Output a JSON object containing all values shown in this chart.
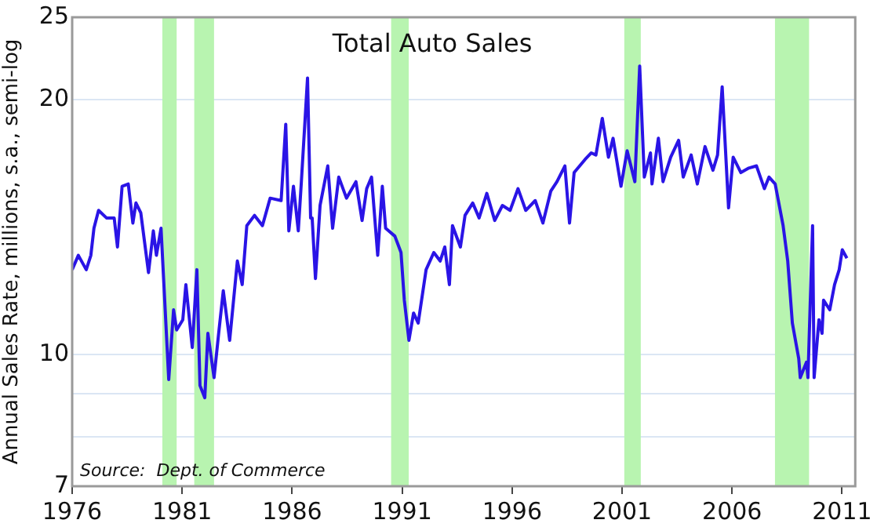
{
  "chart_data": {
    "type": "line",
    "title": "Total Auto Sales",
    "ylabel": "Annual Sales Rate, millions, s.a., semi-log",
    "annotations": [
      "Source:  Dept. of Commerce"
    ],
    "log": "y",
    "grid": "y",
    "legend": false,
    "marker": "none",
    "line_style": "solid",
    "xlim": [
      1976,
      2011.6
    ],
    "xticks": [
      1976,
      1981,
      1986,
      1991,
      1996,
      2001,
      2006,
      2011
    ],
    "ylim": [
      7,
      25
    ],
    "yticks": [
      7,
      {
        "value": 8,
        "label": null
      },
      {
        "value": 9,
        "label": null
      },
      10,
      20,
      25
    ],
    "bands": [
      {
        "axis": "x",
        "from": 1980.1,
        "to": 1980.75,
        "color": "#b8f4b0"
      },
      {
        "axis": "x",
        "from": 1981.55,
        "to": 1982.45,
        "color": "#b8f4b0"
      },
      {
        "axis": "x",
        "from": 1990.5,
        "to": 1991.3,
        "color": "#b8f4b0"
      },
      {
        "axis": "x",
        "from": 2001.1,
        "to": 2001.85,
        "color": "#b8f4b0"
      },
      {
        "axis": "x",
        "from": 2007.95,
        "to": 2009.5,
        "color": "#b8f4b0"
      }
    ],
    "series": [
      {
        "color": "#2a14e6",
        "x": [
          1976.0,
          1976.28,
          1976.64,
          1976.85,
          1976.99,
          1977.2,
          1977.56,
          1977.91,
          1978.06,
          1978.27,
          1978.55,
          1978.76,
          1978.9,
          1979.12,
          1979.47,
          1979.69,
          1979.83,
          1980.04,
          1980.39,
          1980.61,
          1980.75,
          1981.03,
          1981.17,
          1981.46,
          1981.67,
          1981.81,
          1982.03,
          1982.17,
          1982.45,
          1982.66,
          1982.87,
          1983.16,
          1983.51,
          1983.73,
          1983.94,
          1984.29,
          1984.65,
          1985.0,
          1985.5,
          1985.71,
          1985.85,
          1986.06,
          1986.28,
          1986.42,
          1986.7,
          1986.84,
          1986.91,
          1987.06,
          1987.27,
          1987.62,
          1987.84,
          1988.12,
          1988.47,
          1988.9,
          1989.18,
          1989.39,
          1989.61,
          1989.89,
          1990.1,
          1990.25,
          1990.67,
          1990.95,
          1991.1,
          1991.31,
          1991.52,
          1991.73,
          1992.09,
          1992.44,
          1992.73,
          1992.94,
          1993.15,
          1993.29,
          1993.65,
          1993.86,
          1994.21,
          1994.5,
          1994.85,
          1995.21,
          1995.56,
          1995.91,
          1996.27,
          1996.62,
          1997.05,
          1997.4,
          1997.76,
          1998.04,
          1998.4,
          1998.61,
          1998.82,
          1999.32,
          1999.6,
          1999.81,
          2000.1,
          2000.38,
          2000.59,
          2000.95,
          2001.23,
          2001.58,
          2001.8,
          2002.01,
          2002.29,
          2002.36,
          2002.65,
          2002.86,
          2003.21,
          2003.57,
          2003.78,
          2004.14,
          2004.42,
          2004.77,
          2005.13,
          2005.34,
          2005.55,
          2005.84,
          2006.05,
          2006.4,
          2006.76,
          2007.11,
          2007.47,
          2007.68,
          2007.96,
          2008.32,
          2008.53,
          2008.74,
          2009.03,
          2009.1,
          2009.38,
          2009.45,
          2009.66,
          2009.73,
          2009.95,
          2010.09,
          2010.16,
          2010.44,
          2010.66,
          2010.87,
          2011.01,
          2011.22
        ],
        "values": [
          12.6,
          13.1,
          12.6,
          13.1,
          14.1,
          14.8,
          14.5,
          14.5,
          13.4,
          15.8,
          15.9,
          14.3,
          15.1,
          14.7,
          12.5,
          14.0,
          13.1,
          14.1,
          9.35,
          11.3,
          10.7,
          11.0,
          12.1,
          10.2,
          12.6,
          9.2,
          8.9,
          10.6,
          9.4,
          10.6,
          11.9,
          10.4,
          12.9,
          12.1,
          14.2,
          14.6,
          14.2,
          15.3,
          15.2,
          18.7,
          14.0,
          15.8,
          14.0,
          16.0,
          21.2,
          14.5,
          14.5,
          12.3,
          15.0,
          16.7,
          14.1,
          16.2,
          15.3,
          16.0,
          14.4,
          15.7,
          16.2,
          13.1,
          15.8,
          14.1,
          13.8,
          13.2,
          11.6,
          10.4,
          11.2,
          10.9,
          12.6,
          13.2,
          12.9,
          13.4,
          12.1,
          14.2,
          13.4,
          14.6,
          15.1,
          14.5,
          15.5,
          14.4,
          15.0,
          14.8,
          15.7,
          14.8,
          15.2,
          14.3,
          15.6,
          16.0,
          16.7,
          14.3,
          16.4,
          17.0,
          17.3,
          17.2,
          19.0,
          17.1,
          18.0,
          15.8,
          17.4,
          16.0,
          21.9,
          16.2,
          17.3,
          15.9,
          18.0,
          16.0,
          17.1,
          17.9,
          16.2,
          17.2,
          15.9,
          17.6,
          16.5,
          17.2,
          20.7,
          14.9,
          17.1,
          16.4,
          16.6,
          16.7,
          15.7,
          16.2,
          15.9,
          14.2,
          12.9,
          10.9,
          9.9,
          9.4,
          9.8,
          9.4,
          14.2,
          9.4,
          11.0,
          10.6,
          11.6,
          11.3,
          12.1,
          12.6,
          13.3,
          13.0
        ]
      }
    ]
  }
}
